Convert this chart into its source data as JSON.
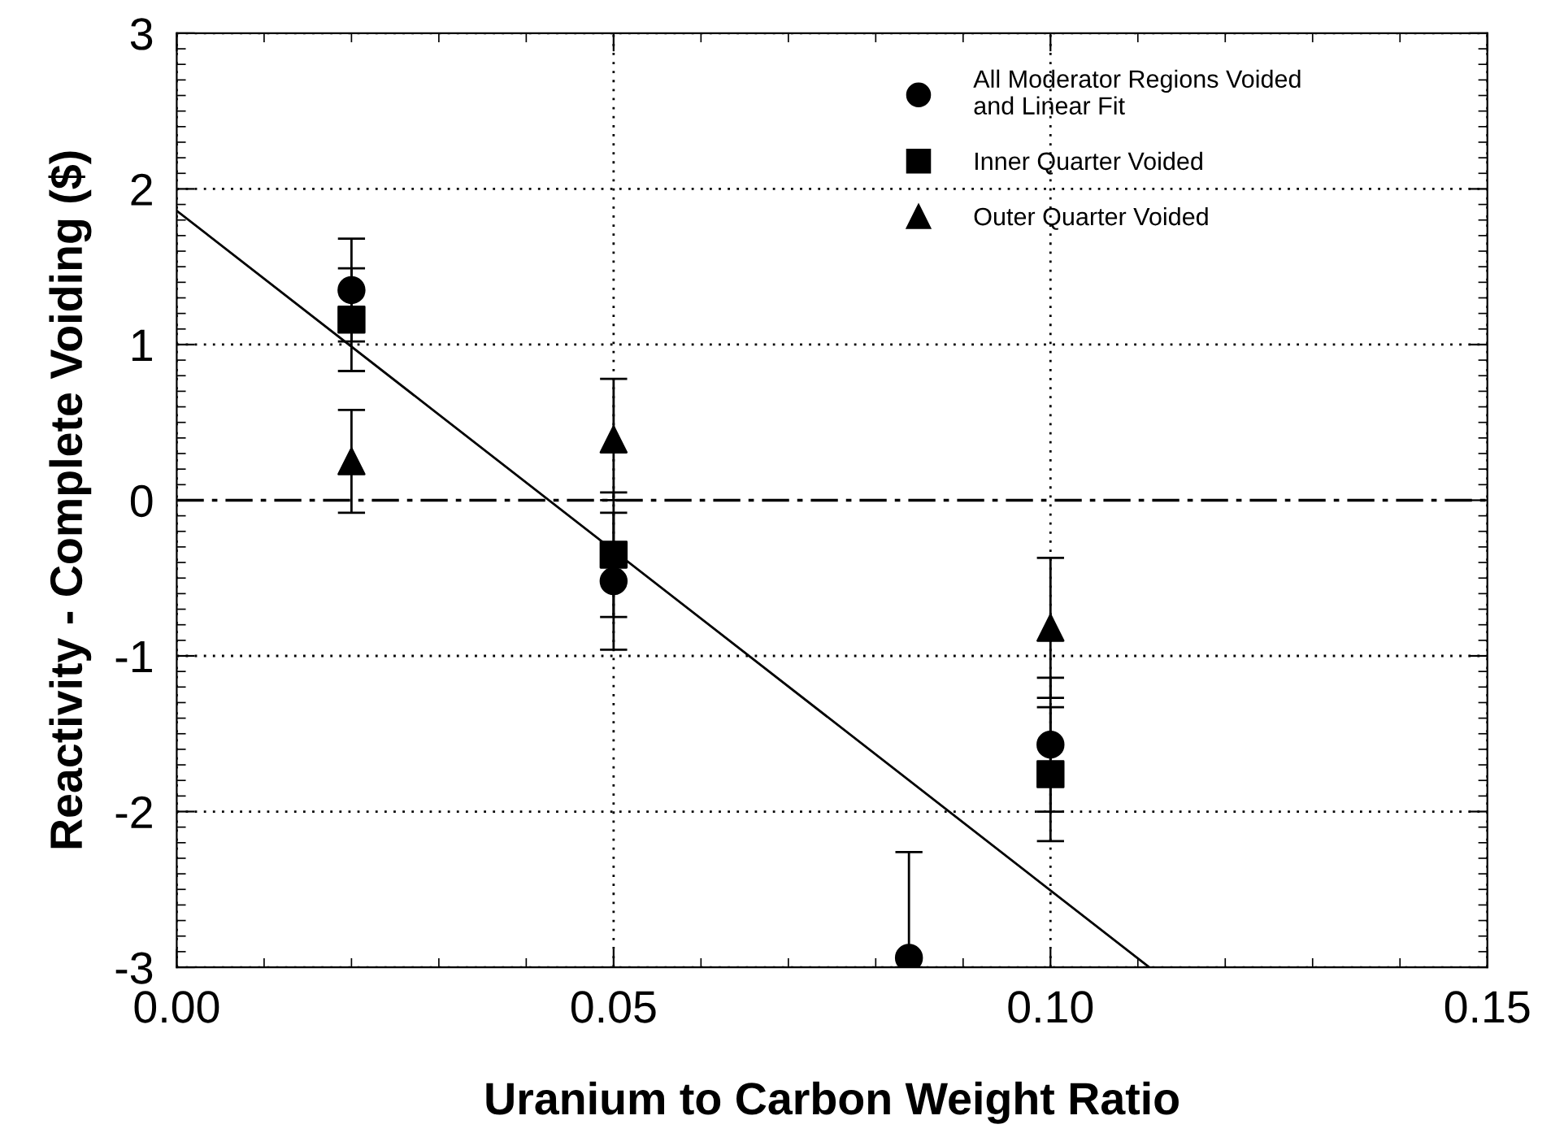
{
  "chart_data": {
    "type": "scatter",
    "xlabel": "Uranium to Carbon Weight Ratio",
    "ylabel": "Reactivity - Complete Voiding ($)",
    "xlim": [
      0,
      0.15
    ],
    "ylim": [
      -3,
      3
    ],
    "xticks": [
      {
        "value": 0,
        "label": "0.00"
      },
      {
        "value": 0.05,
        "label": "0.05"
      },
      {
        "value": 0.1,
        "label": "0.10"
      },
      {
        "value": 0.15,
        "label": "0.15"
      }
    ],
    "yticks": [
      -3,
      -2,
      -1,
      0,
      1,
      2,
      3
    ],
    "grid": true,
    "legend": "top right",
    "series": [
      {
        "name": "All Moderator Regions Voided\nand Linear Fit",
        "color": "#000000",
        "marker": "circle",
        "x": [
          0.02,
          0.05,
          0.0838,
          0.1
        ],
        "values": [
          1.35,
          -0.52,
          -2.94,
          -1.57
        ],
        "errors": [
          0.33,
          0.44,
          [
            -3,
            -2.26
          ],
          0.43
        ]
      },
      {
        "name": "Inner Quarter Voided",
        "color": "#000000",
        "marker": "square",
        "x": [
          0.02,
          0.05,
          0.1
        ],
        "values": [
          1.16,
          -0.35,
          -1.76
        ],
        "errors": [
          0.33,
          0.4,
          0.43
        ]
      },
      {
        "name": "Outer Quarter Voided",
        "color": "#000000",
        "marker": "triangle",
        "x": [
          0.02,
          0.05,
          0.1
        ],
        "values": [
          0.25,
          0.39,
          -0.82
        ],
        "errors": [
          0.33,
          0.39,
          0.45
        ]
      },
      {
        "type": "line",
        "color": "#000000",
        "line_style": "solid",
        "x": [
          0,
          0.1113
        ],
        "values": [
          1.86,
          -3
        ]
      }
    ],
    "ref_lines": [
      {
        "axis": "y",
        "value": 0,
        "color": "#000000",
        "line_style": "dashdot"
      }
    ]
  }
}
